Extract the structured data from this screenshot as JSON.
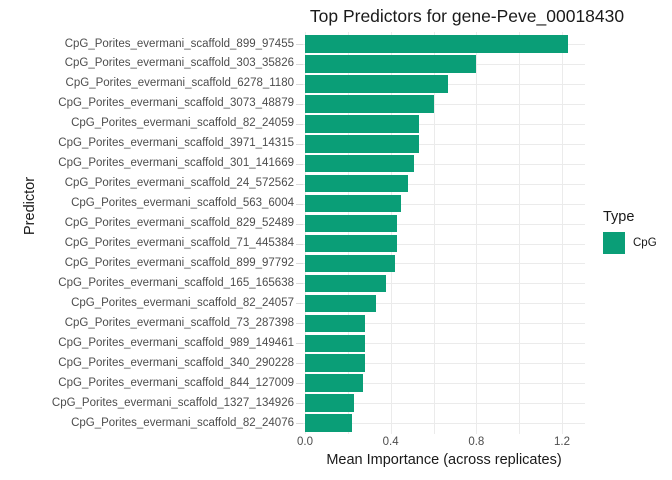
{
  "chart_data": {
    "type": "bar",
    "orientation": "horizontal",
    "title": "Top Predictors for gene-Peve_00018430",
    "xlabel": "Mean Importance (across replicates)",
    "ylabel": "Predictor",
    "categories": [
      "CpG_Porites_evermani_scaffold_899_97455",
      "CpG_Porites_evermani_scaffold_303_35826",
      "CpG_Porites_evermani_scaffold_6278_1180",
      "CpG_Porites_evermani_scaffold_3073_48879",
      "CpG_Porites_evermani_scaffold_82_24059",
      "CpG_Porites_evermani_scaffold_3971_14315",
      "CpG_Porites_evermani_scaffold_301_141669",
      "CpG_Porites_evermani_scaffold_24_572562",
      "CpG_Porites_evermani_scaffold_563_6004",
      "CpG_Porites_evermani_scaffold_829_52489",
      "CpG_Porites_evermani_scaffold_71_445384",
      "CpG_Porites_evermani_scaffold_899_97792",
      "CpG_Porites_evermani_scaffold_165_165638",
      "CpG_Porites_evermani_scaffold_82_24057",
      "CpG_Porites_evermani_scaffold_73_287398",
      "CpG_Porites_evermani_scaffold_989_149461",
      "CpG_Porites_evermani_scaffold_340_290228",
      "CpG_Porites_evermani_scaffold_844_127009",
      "CpG_Porites_evermani_scaffold_1327_134926",
      "CpG_Porites_evermani_scaffold_82_24076"
    ],
    "values": [
      1.23,
      0.8,
      0.67,
      0.6,
      0.53,
      0.53,
      0.51,
      0.48,
      0.45,
      0.43,
      0.43,
      0.42,
      0.38,
      0.33,
      0.28,
      0.28,
      0.28,
      0.27,
      0.23,
      0.22
    ],
    "series_name": "CpG",
    "xlim": [
      0,
      1.3
    ],
    "x_ticks": [
      0.0,
      0.4,
      0.8,
      1.2
    ],
    "x_tick_labels": [
      "0.0",
      "0.4",
      "0.8",
      "1.2"
    ],
    "gridline_interval": 0.2,
    "grid": true,
    "bar_color": "#0a9e77",
    "grid_color": "#ebebeb",
    "tick_color": "#d9d9d9",
    "tick_text_color": "#4d4d4d",
    "legend": {
      "position": "right",
      "title": "Type",
      "items": [
        {
          "label": "CpG",
          "color": "#0a9e77"
        }
      ]
    }
  }
}
